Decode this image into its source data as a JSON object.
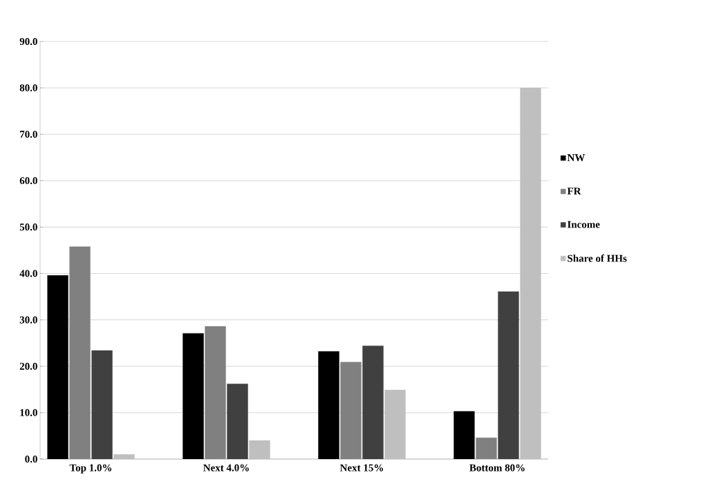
{
  "chart_data": {
    "type": "bar",
    "categories": [
      "Top 1.0%",
      "Next 4.0%",
      "Next 15%",
      "Bottom 80%"
    ],
    "series": [
      {
        "name": "NW",
        "color": "#000000",
        "values": [
          39.6,
          27.1,
          23.2,
          10.3
        ]
      },
      {
        "name": "FR",
        "color": "#808080",
        "values": [
          45.8,
          28.6,
          20.9,
          4.6
        ]
      },
      {
        "name": "Income",
        "color": "#404040",
        "values": [
          23.4,
          16.2,
          24.4,
          36.1
        ]
      },
      {
        "name": "Share of HHs",
        "color": "#bfbfbf",
        "values": [
          1.0,
          4.0,
          14.9,
          80.0
        ]
      }
    ],
    "ylim": [
      0,
      90
    ],
    "yticks": [
      {
        "value": 0,
        "label": "0.0"
      },
      {
        "value": 10,
        "label": "10.0"
      },
      {
        "value": 20,
        "label": "20.0"
      },
      {
        "value": 30,
        "label": "30.0"
      },
      {
        "value": 40,
        "label": "40.0"
      },
      {
        "value": 50,
        "label": "50.0"
      },
      {
        "value": 60,
        "label": "60.0"
      },
      {
        "value": 70,
        "label": "70.0"
      },
      {
        "value": 80,
        "label": "80.0"
      },
      {
        "value": 90,
        "label": "90.0"
      }
    ],
    "grid": "y",
    "legend": "right"
  }
}
